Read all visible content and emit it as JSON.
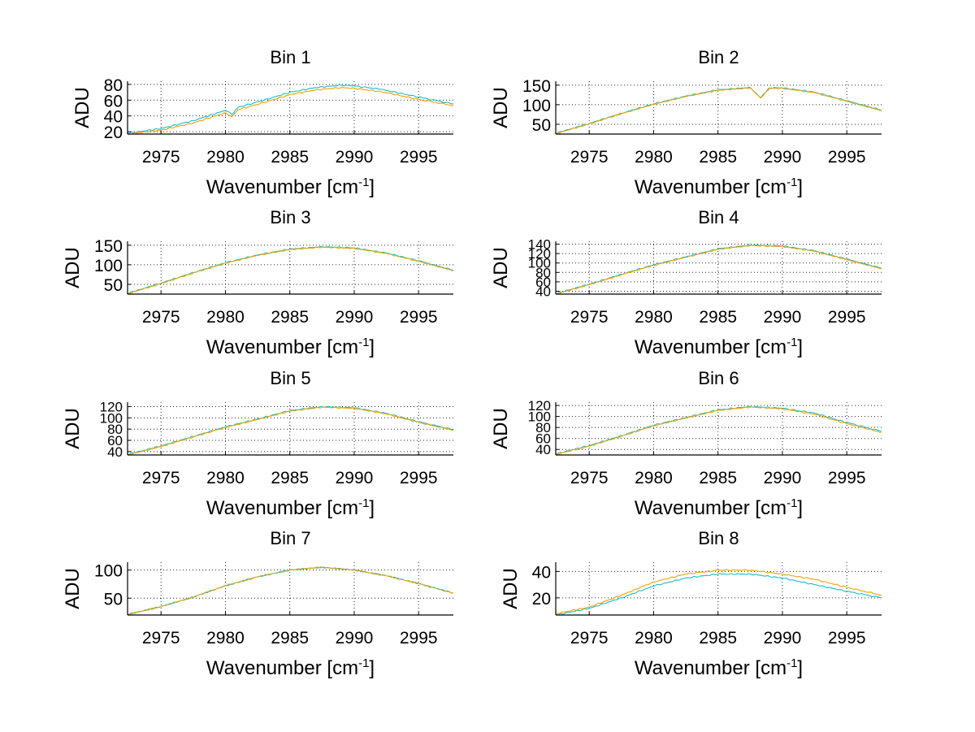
{
  "figure": {
    "xlabel_main": "Wavenumber [cm",
    "xlabel_sup": "-1",
    "xlabel_end": "]",
    "ylabel": "ADU",
    "colors": {
      "series_a": "#17becf",
      "series_b": "#f5a000"
    }
  },
  "chart_data": [
    {
      "type": "line",
      "title": "Bin 1",
      "xlim": [
        2972.4,
        2997.7
      ],
      "ylim": [
        17,
        84
      ],
      "xticks": [
        2975,
        2980,
        2985,
        2990,
        2995
      ],
      "yticks": [
        20,
        40,
        60,
        80
      ],
      "grid": true,
      "series": [
        {
          "points": [
            [
              2972.4,
              18
            ],
            [
              2975,
              24
            ],
            [
              2977.5,
              34
            ],
            [
              2980,
              47
            ],
            [
              2980.5,
              42
            ],
            [
              2981,
              51
            ],
            [
              2983,
              60
            ],
            [
              2985,
              70
            ],
            [
              2987,
              76
            ],
            [
              2989,
              79
            ],
            [
              2990,
              78
            ],
            [
              2992,
              74
            ],
            [
              2995,
              64
            ],
            [
              2997.7,
              55
            ]
          ]
        },
        {
          "points": [
            [
              2972.4,
              17
            ],
            [
              2975,
              22
            ],
            [
              2977.5,
              31
            ],
            [
              2980,
              44
            ],
            [
              2980.5,
              39
            ],
            [
              2981,
              48
            ],
            [
              2983,
              57
            ],
            [
              2985,
              67
            ],
            [
              2987,
              73
            ],
            [
              2989,
              76
            ],
            [
              2990,
              75
            ],
            [
              2992,
              71
            ],
            [
              2995,
              61
            ],
            [
              2997.7,
              53
            ]
          ]
        }
      ]
    },
    {
      "type": "line",
      "title": "Bin 2",
      "xlim": [
        2972.4,
        2997.7
      ],
      "ylim": [
        25,
        160
      ],
      "xticks": [
        2975,
        2980,
        2985,
        2990,
        2995
      ],
      "yticks": [
        50,
        100,
        150
      ],
      "grid": true,
      "series": [
        {
          "points": [
            [
              2972.4,
              27
            ],
            [
              2975,
              52
            ],
            [
              2977.5,
              78
            ],
            [
              2980,
              102
            ],
            [
              2982.5,
              122
            ],
            [
              2985,
              138
            ],
            [
              2987.5,
              144
            ],
            [
              2988.3,
              118
            ],
            [
              2989,
              143
            ],
            [
              2990,
              143
            ],
            [
              2992.5,
              132
            ],
            [
              2995,
              110
            ],
            [
              2997.7,
              86
            ]
          ]
        },
        {
          "points": [
            [
              2972.4,
              26
            ],
            [
              2975,
              51
            ],
            [
              2977.5,
              77
            ],
            [
              2980,
              101
            ],
            [
              2982.5,
              121
            ],
            [
              2985,
              137
            ],
            [
              2987.5,
              143
            ],
            [
              2988.3,
              117
            ],
            [
              2989,
              142
            ],
            [
              2990,
              142
            ],
            [
              2992.5,
              131
            ],
            [
              2995,
              109
            ],
            [
              2997.7,
              85
            ]
          ]
        }
      ]
    },
    {
      "type": "line",
      "title": "Bin 3",
      "xlim": [
        2972.4,
        2997.7
      ],
      "ylim": [
        25,
        160
      ],
      "xticks": [
        2975,
        2980,
        2985,
        2990,
        2995
      ],
      "yticks": [
        50,
        100,
        150
      ],
      "grid": true,
      "series": [
        {
          "points": [
            [
              2972.4,
              27
            ],
            [
              2975,
              53
            ],
            [
              2977.5,
              80
            ],
            [
              2980,
              105
            ],
            [
              2982.5,
              125
            ],
            [
              2985,
              140
            ],
            [
              2987.5,
              146
            ],
            [
              2990,
              143
            ],
            [
              2992.5,
              130
            ],
            [
              2995,
              110
            ],
            [
              2997.7,
              86
            ]
          ]
        },
        {
          "points": [
            [
              2972.4,
              26
            ],
            [
              2975,
              52
            ],
            [
              2977.5,
              79
            ],
            [
              2980,
              104
            ],
            [
              2982.5,
              124
            ],
            [
              2985,
              139
            ],
            [
              2987.5,
              145
            ],
            [
              2990,
              142
            ],
            [
              2992.5,
              129
            ],
            [
              2995,
              109
            ],
            [
              2997.7,
              85
            ]
          ]
        }
      ]
    },
    {
      "type": "line",
      "title": "Bin 4",
      "xlim": [
        2972.4,
        2997.7
      ],
      "ylim": [
        34,
        146
      ],
      "xticks": [
        2975,
        2980,
        2985,
        2990,
        2995
      ],
      "yticks": [
        40,
        60,
        80,
        100,
        120,
        140
      ],
      "grid": true,
      "series": [
        {
          "points": [
            [
              2972.4,
              35
            ],
            [
              2975,
              55
            ],
            [
              2977.5,
              76
            ],
            [
              2980,
              96
            ],
            [
              2982.5,
              113
            ],
            [
              2985,
              130
            ],
            [
              2987.5,
              138
            ],
            [
              2990,
              136
            ],
            [
              2992.5,
              126
            ],
            [
              2995,
              108
            ],
            [
              2997.7,
              89
            ]
          ]
        },
        {
          "points": [
            [
              2972.4,
              34
            ],
            [
              2975,
              54
            ],
            [
              2977.5,
              75
            ],
            [
              2980,
              95
            ],
            [
              2982.5,
              112
            ],
            [
              2985,
              129
            ],
            [
              2987.5,
              137
            ],
            [
              2990,
              135
            ],
            [
              2992.5,
              125
            ],
            [
              2995,
              107
            ],
            [
              2997.7,
              88
            ]
          ]
        }
      ]
    },
    {
      "type": "line",
      "title": "Bin 5",
      "xlim": [
        2972.4,
        2997.7
      ],
      "ylim": [
        34,
        128
      ],
      "xticks": [
        2975,
        2980,
        2985,
        2990,
        2995
      ],
      "yticks": [
        40,
        60,
        80,
        100,
        120
      ],
      "grid": true,
      "series": [
        {
          "points": [
            [
              2972.4,
              35
            ],
            [
              2975,
              50
            ],
            [
              2977.5,
              67
            ],
            [
              2980,
              84
            ],
            [
              2982.5,
              98
            ],
            [
              2985,
              113
            ],
            [
              2987.5,
              120
            ],
            [
              2990,
              118
            ],
            [
              2992.5,
              108
            ],
            [
              2995,
              93
            ],
            [
              2997.7,
              79
            ]
          ]
        },
        {
          "points": [
            [
              2972.4,
              34
            ],
            [
              2975,
              49
            ],
            [
              2977.5,
              66
            ],
            [
              2980,
              83
            ],
            [
              2982.5,
              97
            ],
            [
              2985,
              112
            ],
            [
              2987.5,
              119
            ],
            [
              2990,
              117
            ],
            [
              2992.5,
              107
            ],
            [
              2995,
              92
            ],
            [
              2997.7,
              78
            ]
          ]
        }
      ]
    },
    {
      "type": "line",
      "title": "Bin 6",
      "xlim": [
        2972.4,
        2997.7
      ],
      "ylim": [
        30,
        126
      ],
      "xticks": [
        2975,
        2980,
        2985,
        2990,
        2995
      ],
      "yticks": [
        40,
        60,
        80,
        100,
        120
      ],
      "grid": true,
      "series": [
        {
          "points": [
            [
              2972.4,
              32
            ],
            [
              2975,
              47
            ],
            [
              2977.5,
              65
            ],
            [
              2980,
              84
            ],
            [
              2982.5,
              98
            ],
            [
              2985,
              112
            ],
            [
              2987.5,
              118
            ],
            [
              2990,
              115
            ],
            [
              2992.5,
              106
            ],
            [
              2995,
              89
            ],
            [
              2997.7,
              73
            ]
          ]
        },
        {
          "points": [
            [
              2972.4,
              31
            ],
            [
              2975,
              46
            ],
            [
              2977.5,
              64
            ],
            [
              2980,
              83
            ],
            [
              2982.5,
              97
            ],
            [
              2985,
              111
            ],
            [
              2987.5,
              117
            ],
            [
              2990,
              114
            ],
            [
              2992.5,
              104
            ],
            [
              2995,
              87
            ],
            [
              2997.7,
              71
            ]
          ]
        }
      ]
    },
    {
      "type": "line",
      "title": "Bin 7",
      "xlim": [
        2972.4,
        2997.7
      ],
      "ylim": [
        20,
        114
      ],
      "xticks": [
        2975,
        2980,
        2985,
        2990,
        2995
      ],
      "yticks": [
        50,
        100
      ],
      "grid": true,
      "series": [
        {
          "points": [
            [
              2972.4,
              21
            ],
            [
              2975,
              35
            ],
            [
              2977.5,
              52
            ],
            [
              2980,
              72
            ],
            [
              2982.5,
              88
            ],
            [
              2985,
              100
            ],
            [
              2987.5,
              105
            ],
            [
              2990,
              100
            ],
            [
              2992.5,
              90
            ],
            [
              2995,
              76
            ],
            [
              2997.7,
              59
            ]
          ]
        },
        {
          "points": [
            [
              2972.4,
              21
            ],
            [
              2975,
              35
            ],
            [
              2977.5,
              52
            ],
            [
              2980,
              72
            ],
            [
              2982.5,
              88
            ],
            [
              2985,
              100
            ],
            [
              2987.5,
              105
            ],
            [
              2990,
              100
            ],
            [
              2992.5,
              90
            ],
            [
              2995,
              76
            ],
            [
              2997.7,
              59
            ]
          ]
        }
      ]
    },
    {
      "type": "line",
      "title": "Bin 8",
      "xlim": [
        2972.4,
        2997.7
      ],
      "ylim": [
        7,
        47
      ],
      "xticks": [
        2975,
        2980,
        2985,
        2990,
        2995
      ],
      "yticks": [
        20,
        40
      ],
      "grid": true,
      "series": [
        {
          "points": [
            [
              2972.4,
              7
            ],
            [
              2975,
              12
            ],
            [
              2977.5,
              20
            ],
            [
              2980,
              29
            ],
            [
              2982.5,
              35
            ],
            [
              2985,
              38
            ],
            [
              2987.5,
              38
            ],
            [
              2990,
              35
            ],
            [
              2992.5,
              30
            ],
            [
              2995,
              25
            ],
            [
              2997.7,
              20
            ]
          ]
        },
        {
          "points": [
            [
              2972.4,
              8
            ],
            [
              2975,
              13
            ],
            [
              2977.5,
              22
            ],
            [
              2980,
              32
            ],
            [
              2982.5,
              38
            ],
            [
              2985,
              41
            ],
            [
              2987.5,
              41
            ],
            [
              2990,
              38
            ],
            [
              2992.5,
              34
            ],
            [
              2995,
              28
            ],
            [
              2997.7,
              22
            ]
          ]
        }
      ]
    }
  ]
}
